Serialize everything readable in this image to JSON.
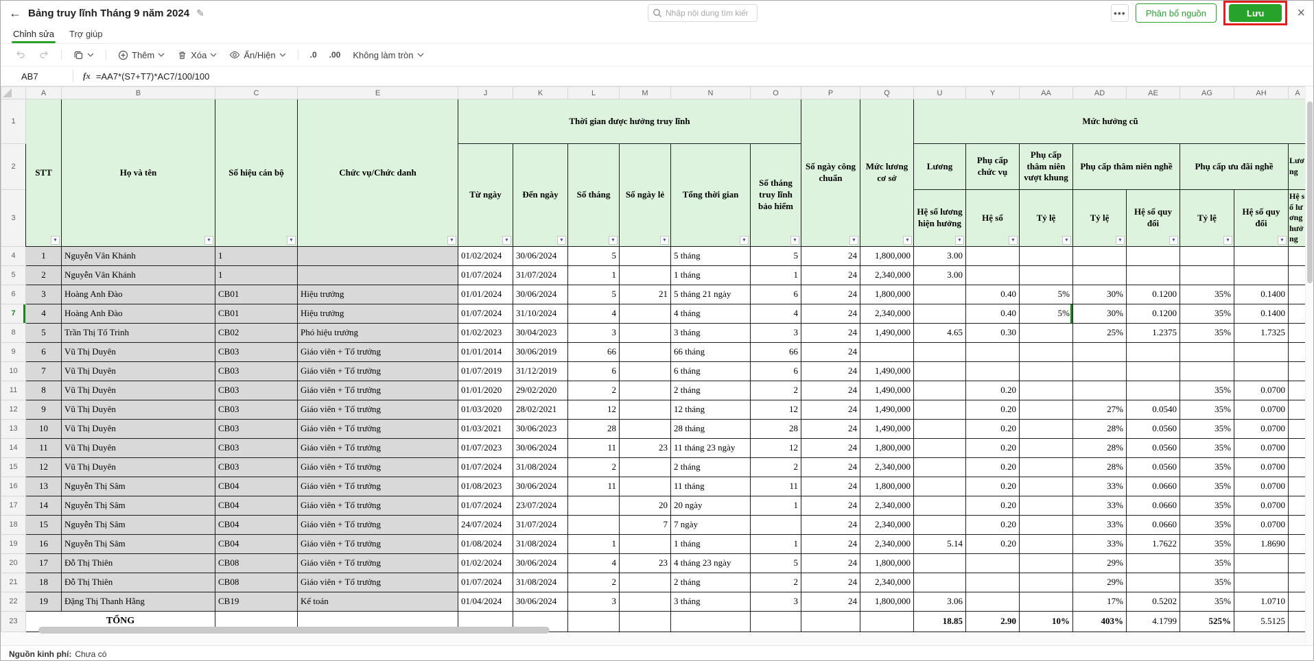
{
  "header": {
    "title": "Bảng truy lĩnh Tháng 9 năm 2024",
    "search_placeholder": "Nhập nội dung tìm kiếm",
    "more_label": "•••",
    "allocate_label": "Phân bổ nguồn",
    "save_label": "Lưu"
  },
  "tabs": {
    "edit": "Chỉnh sửa",
    "help": "Trợ giúp"
  },
  "toolbar": {
    "add": "Thêm",
    "delete": "Xóa",
    "hide_show": "Ẩn/Hiện",
    "dec0": ".0",
    "dec00": ".00",
    "rounding": "Không làm tròn"
  },
  "formula_bar": {
    "cell_ref": "AB7",
    "fx_label": "fx",
    "formula": "=AA7*(S7+T7)*AC7/100/100"
  },
  "colors": {
    "accent_green": "#27a32b",
    "annotation_red": "#e01f1f",
    "header_green": "#ddf3dd",
    "selection_green": "#17871b"
  },
  "grid": {
    "column_letters": [
      "A",
      "B",
      "C",
      "E",
      "J",
      "K",
      "L",
      "M",
      "N",
      "O",
      "P",
      "Q",
      "U",
      "Y",
      "AA",
      "AD",
      "AE",
      "AG",
      "AH",
      "A"
    ],
    "headers": {
      "stt": "STT",
      "ho_va_ten": "Họ và tên",
      "so_hieu_can_bo": "Số hiệu cán bộ",
      "chuc_vu": "Chức vụ/Chức danh",
      "group_time": "Thời gian được hưởng truy lĩnh",
      "tu_ngay": "Từ ngày",
      "den_ngay": "Đến ngày",
      "so_thang": "Số tháng",
      "so_ngay_le": "Số ngày lẻ",
      "tong_thoi_gian": "Tổng thời gian",
      "so_thang_bh": "Số tháng truy lĩnh bảo hiểm",
      "so_ngay_cong": "Số ngày công chuẩn",
      "muc_luong_co_so": "Mức lương cơ sở",
      "group_old": "Mức hưởng cũ",
      "luong": "Lương",
      "pc_chuc_vu": "Phụ cấp chức vụ",
      "pc_tnvk": "Phụ cấp thâm niên vượt khung",
      "pc_tnn": "Phụ cấp thâm niên nghề",
      "pc_udn": "Phụ cấp ưu đãi nghề",
      "he_so_luong_hien_huong": "Hệ số lương hiện hưởng",
      "he_so": "Hệ số",
      "ty_le": "Tỷ lệ",
      "he_so_quy_doi": "Hệ số quy đổi",
      "partial_group": "Lương",
      "partial_sub": "Hệ số lương hưởng"
    },
    "rows": [
      [
        "1",
        "Nguyễn Vân Khánh",
        "1",
        "",
        "01/02/2024",
        "30/06/2024",
        "5",
        "",
        "5 tháng",
        "5",
        "24",
        "1,800,000",
        "3.00",
        "",
        "",
        "",
        "",
        "",
        "",
        ""
      ],
      [
        "2",
        "Nguyễn Vân Khánh",
        "1",
        "",
        "01/07/2024",
        "31/07/2024",
        "1",
        "",
        "1 tháng",
        "1",
        "24",
        "2,340,000",
        "3.00",
        "",
        "",
        "",
        "",
        "",
        "",
        ""
      ],
      [
        "3",
        "Hoàng Anh Đào",
        "CB01",
        "Hiệu trưởng",
        "01/01/2024",
        "30/06/2024",
        "5",
        "21",
        "5 tháng 21 ngày",
        "6",
        "24",
        "1,800,000",
        "",
        "0.40",
        "5%",
        "30%",
        "0.1200",
        "35%",
        "0.1400",
        ""
      ],
      [
        "4",
        "Hoàng Anh Đào",
        "CB01",
        "Hiệu trưởng",
        "01/07/2024",
        "31/10/2024",
        "4",
        "",
        "4 tháng",
        "4",
        "24",
        "2,340,000",
        "",
        "0.40",
        "5%",
        "30%",
        "0.1200",
        "35%",
        "0.1400",
        ""
      ],
      [
        "5",
        "Trần Thị Tố Trinh",
        "CB02",
        "Phó hiệu trưởng",
        "01/02/2023",
        "30/04/2023",
        "3",
        "",
        "3 tháng",
        "3",
        "24",
        "1,490,000",
        "4.65",
        "0.30",
        "",
        "25%",
        "1.2375",
        "35%",
        "1.7325",
        ""
      ],
      [
        "6",
        "Vũ Thị Duyên",
        "CB03",
        "Giáo viên + Tổ trưởng",
        "01/01/2014",
        "30/06/2019",
        "66",
        "",
        "66 tháng",
        "66",
        "24",
        "",
        "",
        "",
        "",
        "",
        "",
        "",
        "",
        ""
      ],
      [
        "7",
        "Vũ Thị Duyên",
        "CB03",
        "Giáo viên + Tổ trưởng",
        "01/07/2019",
        "31/12/2019",
        "6",
        "",
        "6 tháng",
        "6",
        "24",
        "1,490,000",
        "",
        "",
        "",
        "",
        "",
        "",
        "",
        ""
      ],
      [
        "8",
        "Vũ Thị Duyên",
        "CB03",
        "Giáo viên + Tổ trưởng",
        "01/01/2020",
        "29/02/2020",
        "2",
        "",
        "2 tháng",
        "2",
        "24",
        "1,490,000",
        "",
        "0.20",
        "",
        "",
        "",
        "35%",
        "0.0700",
        ""
      ],
      [
        "9",
        "Vũ Thị Duyên",
        "CB03",
        "Giáo viên + Tổ trưởng",
        "01/03/2020",
        "28/02/2021",
        "12",
        "",
        "12 tháng",
        "12",
        "24",
        "1,490,000",
        "",
        "0.20",
        "",
        "27%",
        "0.0540",
        "35%",
        "0.0700",
        ""
      ],
      [
        "10",
        "Vũ Thị Duyên",
        "CB03",
        "Giáo viên + Tổ trưởng",
        "01/03/2021",
        "30/06/2023",
        "28",
        "",
        "28 tháng",
        "28",
        "24",
        "1,490,000",
        "",
        "0.20",
        "",
        "28%",
        "0.0560",
        "35%",
        "0.0700",
        ""
      ],
      [
        "11",
        "Vũ Thị Duyên",
        "CB03",
        "Giáo viên + Tổ trưởng",
        "01/07/2023",
        "30/06/2024",
        "11",
        "23",
        "11 tháng 23 ngày",
        "12",
        "24",
        "1,800,000",
        "",
        "0.20",
        "",
        "28%",
        "0.0560",
        "35%",
        "0.0700",
        ""
      ],
      [
        "12",
        "Vũ Thị Duyên",
        "CB03",
        "Giáo viên + Tổ trưởng",
        "01/07/2024",
        "31/08/2024",
        "2",
        "",
        "2 tháng",
        "2",
        "24",
        "2,340,000",
        "",
        "0.20",
        "",
        "28%",
        "0.0560",
        "35%",
        "0.0700",
        ""
      ],
      [
        "13",
        "Nguyễn Thị Sâm",
        "CB04",
        "Giáo viên + Tổ trưởng",
        "01/08/2023",
        "30/06/2024",
        "11",
        "",
        "11 tháng",
        "11",
        "24",
        "1,800,000",
        "",
        "0.20",
        "",
        "33%",
        "0.0660",
        "35%",
        "0.0700",
        ""
      ],
      [
        "14",
        "Nguyễn Thị Sâm",
        "CB04",
        "Giáo viên + Tổ trưởng",
        "01/07/2024",
        "23/07/2024",
        "",
        "20",
        "20 ngày",
        "1",
        "24",
        "2,340,000",
        "",
        "0.20",
        "",
        "33%",
        "0.0660",
        "35%",
        "0.0700",
        ""
      ],
      [
        "15",
        "Nguyễn Thị Sâm",
        "CB04",
        "Giáo viên + Tổ trưởng",
        "24/07/2024",
        "31/07/2024",
        "",
        "7",
        "7 ngày",
        "",
        "24",
        "2,340,000",
        "",
        "0.20",
        "",
        "33%",
        "0.0660",
        "35%",
        "0.0700",
        ""
      ],
      [
        "16",
        "Nguyễn Thị Sâm",
        "CB04",
        "Giáo viên + Tổ trưởng",
        "01/08/2024",
        "31/08/2024",
        "1",
        "",
        "1 tháng",
        "1",
        "24",
        "2,340,000",
        "5.14",
        "0.20",
        "",
        "33%",
        "1.7622",
        "35%",
        "1.8690",
        ""
      ],
      [
        "17",
        "Đỗ Thị Thiên",
        "CB08",
        "Giáo viên + Tổ trưởng",
        "01/02/2024",
        "30/06/2024",
        "4",
        "23",
        "4 tháng 23 ngày",
        "5",
        "24",
        "1,800,000",
        "",
        "",
        "",
        "29%",
        "",
        "35%",
        "",
        ""
      ],
      [
        "18",
        "Đỗ Thị Thiên",
        "CB08",
        "Giáo viên + Tổ trưởng",
        "01/07/2024",
        "31/08/2024",
        "2",
        "",
        "2 tháng",
        "2",
        "24",
        "2,340,000",
        "",
        "",
        "",
        "29%",
        "",
        "35%",
        "",
        ""
      ],
      [
        "19",
        "Đặng Thị Thanh Hằng",
        "CB19",
        "Kế toán",
        "01/04/2024",
        "30/06/2024",
        "3",
        "",
        "3 tháng",
        "3",
        "24",
        "1,800,000",
        "3.06",
        "",
        "",
        "17%",
        "0.5202",
        "35%",
        "1.0710",
        ""
      ]
    ],
    "total": {
      "label": "TỔNG",
      "values": {
        "U": "18.85",
        "Y": "2.90",
        "AA": "10%",
        "AD": "403%",
        "AE": "4.1799",
        "AG": "525%",
        "AH": "5.5125"
      }
    },
    "selection": {
      "cell": "AB7",
      "row": 7
    }
  },
  "status_bar": {
    "label": "Nguồn kinh phí:",
    "value": "Chưa có"
  }
}
